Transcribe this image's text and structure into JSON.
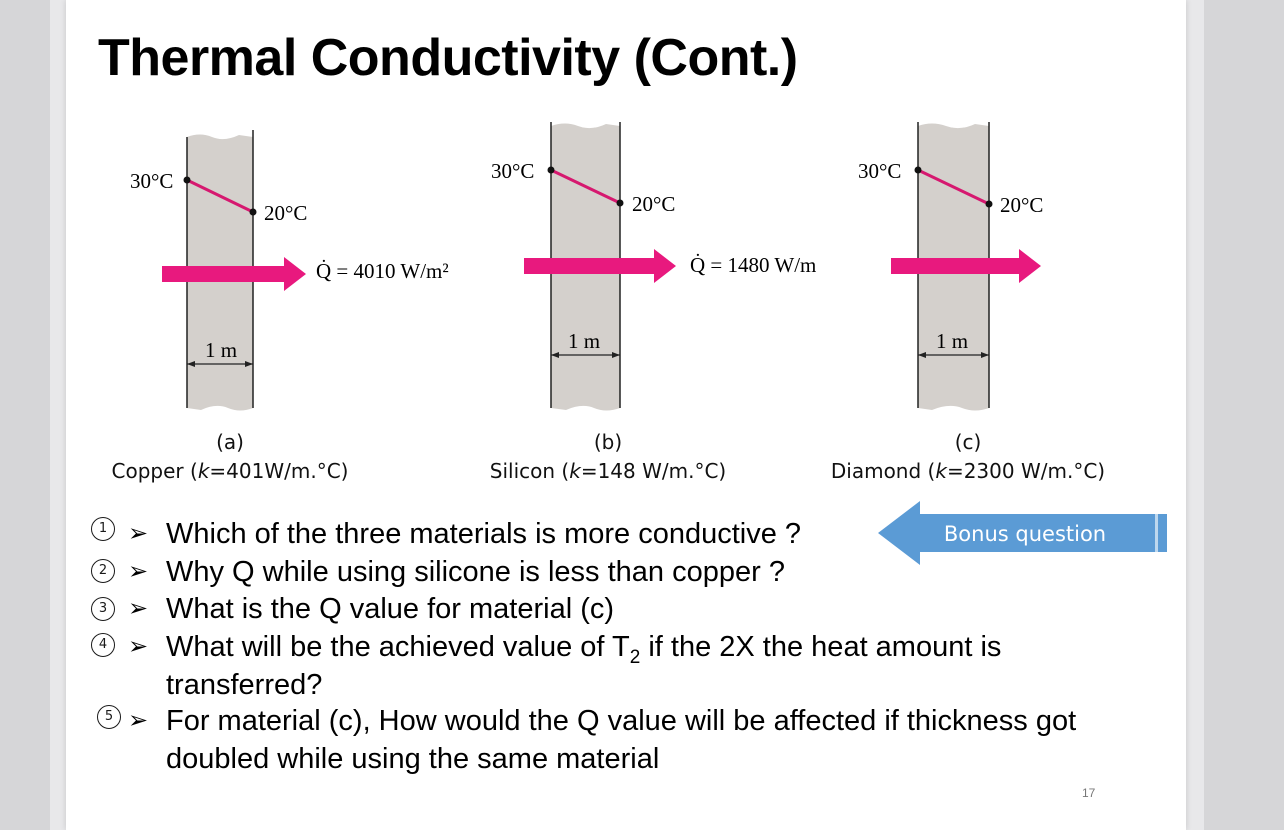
{
  "slide": {
    "title": "Thermal Conductivity (Cont.)",
    "page_number": "17"
  },
  "figures": [
    {
      "id": "a",
      "t_hot": "30°C",
      "t_cold": "20°C",
      "q_label": "Q̇ = 4010 W/m²",
      "thickness": "1 m",
      "letter": "(a)",
      "material": "Copper",
      "k_symbol": "k",
      "k_value": "=401W/m.°C"
    },
    {
      "id": "b",
      "t_hot": "30°C",
      "t_cold": "20°C",
      "q_label": "Q̇ = 1480 W/m",
      "thickness": "1 m",
      "letter": "(b)",
      "material": "Silicon",
      "k_symbol": "k",
      "k_value": "=148 W/m.°C"
    },
    {
      "id": "c",
      "t_hot": "30°C",
      "t_cold": "20°C",
      "q_label": "",
      "thickness": "1 m",
      "letter": "(c)",
      "material": "Diamond",
      "k_symbol": "k",
      "k_value": "=2300 W/m.°C"
    }
  ],
  "bonus": {
    "label": "Bonus question"
  },
  "questions": [
    {
      "num": "1",
      "bullet": "➢",
      "lines": [
        "Which of the three materials is more conductive ?"
      ]
    },
    {
      "num": "2",
      "bullet": "➢",
      "lines": [
        "Why Q while using silicone is less than copper ?"
      ]
    },
    {
      "num": "3",
      "bullet": "➢",
      "lines": [
        "What is the Q value for material (c)"
      ]
    },
    {
      "num": "4",
      "bullet": "➢",
      "lines": [
        "What will be the achieved value of T",
        "2",
        " if the 2X the heat amount is",
        "transferred?"
      ]
    },
    {
      "num": "5",
      "bullet": "➢",
      "lines": [
        "For material (c), How would the Q value will be affected if thickness got",
        "doubled while using the same material"
      ]
    }
  ],
  "colors": {
    "wall": "#d4d0cc",
    "arrow": "#e8197e",
    "gradient_line": "#d6186f",
    "bonus": "#5b9bd5"
  }
}
